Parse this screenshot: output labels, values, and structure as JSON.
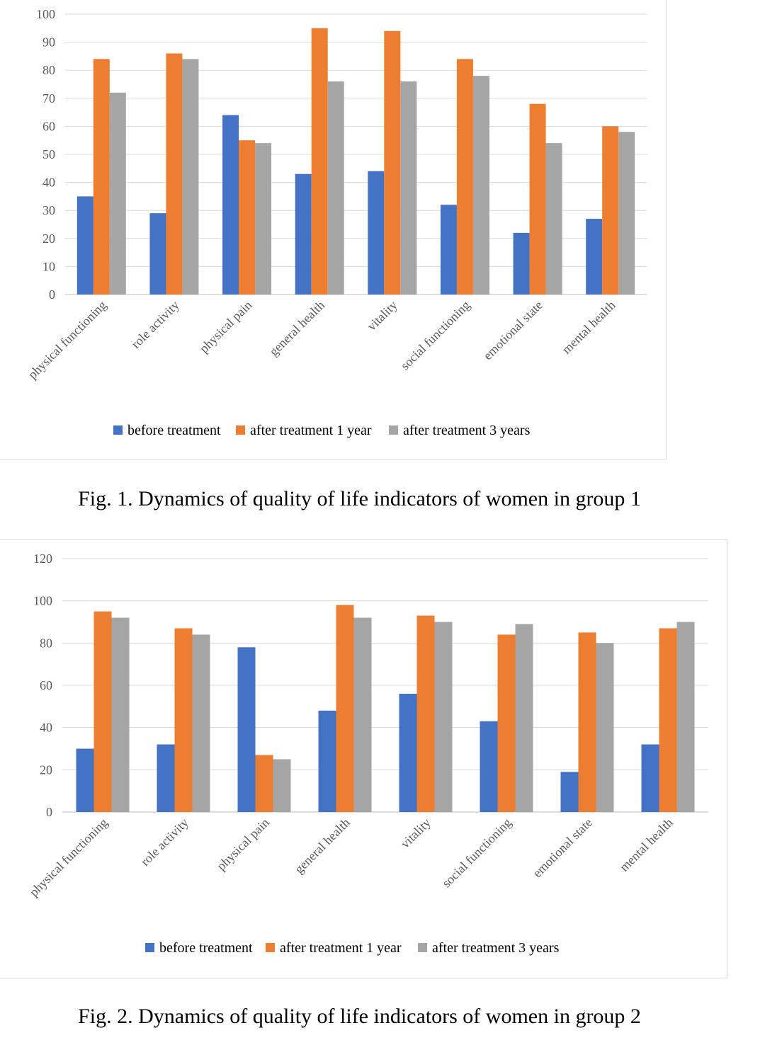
{
  "chart_data": [
    {
      "type": "bar",
      "title": "",
      "caption": "Fig. 1. Dynamics of quality of life indicators of women in group 1",
      "categories": [
        "physical functioning",
        "role activity",
        "physical pain",
        "general health",
        "vitality",
        "social functioning",
        "emotional state",
        "mental health"
      ],
      "series": [
        {
          "name": "before treatment",
          "color": "#4472c4",
          "values": [
            35,
            29,
            64,
            43,
            44,
            32,
            22,
            27
          ]
        },
        {
          "name": "after treatment 1 year",
          "color": "#ed7d31",
          "values": [
            84,
            86,
            55,
            95,
            94,
            84,
            68,
            60
          ]
        },
        {
          "name": "after treatment 3 years",
          "color": "#a5a5a5",
          "values": [
            72,
            84,
            54,
            76,
            76,
            78,
            54,
            58
          ]
        }
      ],
      "yticks": [
        0,
        10,
        20,
        30,
        40,
        50,
        60,
        70,
        80,
        90,
        100
      ],
      "ylim": [
        0,
        100
      ],
      "grid": true,
      "legend": "bottom"
    },
    {
      "type": "bar",
      "title": "",
      "caption": "Fig. 2. Dynamics of quality of life indicators of women in group 2",
      "categories": [
        "physical functioning",
        "role activity",
        "physical pain",
        "general health",
        "vitality",
        "social functioning",
        "emotional state",
        "mental health"
      ],
      "series": [
        {
          "name": "before treatment",
          "color": "#4472c4",
          "values": [
            30,
            32,
            78,
            48,
            56,
            43,
            19,
            32
          ]
        },
        {
          "name": "after treatment 1 year",
          "color": "#ed7d31",
          "values": [
            95,
            87,
            27,
            98,
            93,
            84,
            85,
            87
          ]
        },
        {
          "name": "after treatment 3 years",
          "color": "#a5a5a5",
          "values": [
            92,
            84,
            25,
            92,
            90,
            89,
            80,
            90
          ]
        }
      ],
      "yticks": [
        0,
        20,
        40,
        60,
        80,
        100,
        120
      ],
      "ylim": [
        0,
        120
      ],
      "grid": true,
      "legend": "bottom"
    }
  ]
}
